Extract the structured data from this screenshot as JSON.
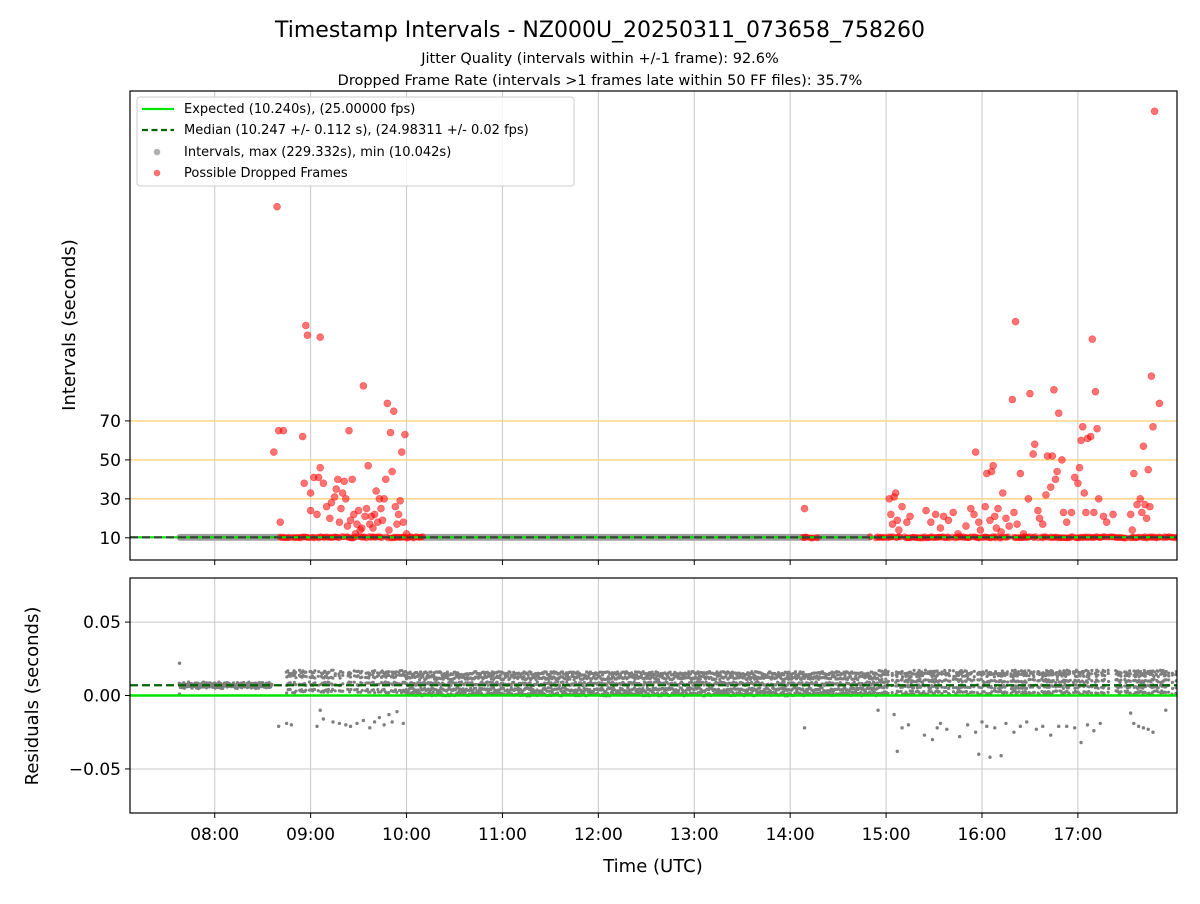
{
  "title": "Timestamp Intervals - NZ000U_20250311_073658_758260",
  "subtitle_1": "Jitter Quality (intervals within +/-1 frame): 92.6%",
  "subtitle_2": "Dropped Frame Rate (intervals >1 frames late within 50 FF files): 35.7%",
  "colors": {
    "expected": "#00e600",
    "median": "#006400",
    "intervals": "#9e9e9e",
    "dropped": "#ff0000",
    "threshold": "#ffd37a",
    "residuals": "#7f7f7f",
    "grid": "#c8c8c8"
  },
  "chart_data": [
    {
      "type": "scatter",
      "panel": "intervals",
      "ylabel": "Intervals (seconds)",
      "yticks": [
        10,
        30,
        50,
        70
      ],
      "ylim": [
        -1.4,
        239.4
      ],
      "xlim": [
        "07:07",
        "18:02"
      ],
      "grid": "vertical",
      "legend_position": "upper-left",
      "legend": [
        "Expected (10.240s), (25.00000 fps)",
        "Median (10.247 +/- 0.112 s), (24.98311 +/- 0.02 fps)",
        "Intervals, max (229.332s), min (10.042s)",
        "Possible Dropped Frames"
      ],
      "expected_value": 10.24,
      "median_value": 10.247,
      "threshold_lines": [
        30,
        50,
        70
      ],
      "normal_intervals": {
        "value": 10.24,
        "ranges": [
          [
            "07:38",
            "08:40"
          ],
          [
            "10:10",
            "14:10"
          ],
          [
            "14:18",
            "14:50"
          ]
        ]
      },
      "dropped_band": [
        [
          "08:40",
          "10:10"
        ],
        [
          "14:08",
          "14:18"
        ],
        [
          "14:50",
          "18:02"
        ]
      ],
      "dropped_points": [
        {
          "t": "08:39",
          "v": 180
        },
        {
          "t": "08:37",
          "v": 54
        },
        {
          "t": "08:40",
          "v": 65
        },
        {
          "t": "08:43",
          "v": 65
        },
        {
          "t": "08:41",
          "v": 18
        },
        {
          "t": "08:55",
          "v": 62
        },
        {
          "t": "08:56",
          "v": 38
        },
        {
          "t": "08:57",
          "v": 119
        },
        {
          "t": "08:58",
          "v": 114
        },
        {
          "t": "09:00",
          "v": 24
        },
        {
          "t": "09:00",
          "v": 33
        },
        {
          "t": "09:02",
          "v": 41
        },
        {
          "t": "09:04",
          "v": 22
        },
        {
          "t": "09:05",
          "v": 41
        },
        {
          "t": "09:06",
          "v": 46
        },
        {
          "t": "09:06",
          "v": 113
        },
        {
          "t": "09:08",
          "v": 38
        },
        {
          "t": "09:10",
          "v": 26
        },
        {
          "t": "09:12",
          "v": 20
        },
        {
          "t": "09:13",
          "v": 28
        },
        {
          "t": "09:15",
          "v": 31
        },
        {
          "t": "09:16",
          "v": 35
        },
        {
          "t": "09:17",
          "v": 40
        },
        {
          "t": "09:18",
          "v": 18
        },
        {
          "t": "09:19",
          "v": 25
        },
        {
          "t": "09:20",
          "v": 33
        },
        {
          "t": "09:21",
          "v": 39
        },
        {
          "t": "09:22",
          "v": 30
        },
        {
          "t": "09:23",
          "v": 16
        },
        {
          "t": "09:24",
          "v": 65
        },
        {
          "t": "09:25",
          "v": 19
        },
        {
          "t": "09:26",
          "v": 40
        },
        {
          "t": "09:27",
          "v": 22
        },
        {
          "t": "09:28",
          "v": 12
        },
        {
          "t": "09:29",
          "v": 17
        },
        {
          "t": "09:30",
          "v": 24
        },
        {
          "t": "09:31",
          "v": 14
        },
        {
          "t": "09:32",
          "v": 15
        },
        {
          "t": "09:33",
          "v": 88
        },
        {
          "t": "09:34",
          "v": 21
        },
        {
          "t": "09:35",
          "v": 25
        },
        {
          "t": "09:36",
          "v": 47
        },
        {
          "t": "09:37",
          "v": 17
        },
        {
          "t": "09:38",
          "v": 21
        },
        {
          "t": "09:39",
          "v": 15
        },
        {
          "t": "09:40",
          "v": 22
        },
        {
          "t": "09:41",
          "v": 34
        },
        {
          "t": "09:42",
          "v": 18
        },
        {
          "t": "09:43",
          "v": 30
        },
        {
          "t": "09:44",
          "v": 25
        },
        {
          "t": "09:45",
          "v": 19
        },
        {
          "t": "09:46",
          "v": 30
        },
        {
          "t": "09:47",
          "v": 40
        },
        {
          "t": "09:48",
          "v": 79
        },
        {
          "t": "09:49",
          "v": 14
        },
        {
          "t": "09:50",
          "v": 64
        },
        {
          "t": "09:51",
          "v": 44
        },
        {
          "t": "09:52",
          "v": 75
        },
        {
          "t": "09:53",
          "v": 26
        },
        {
          "t": "09:54",
          "v": 17
        },
        {
          "t": "09:55",
          "v": 22
        },
        {
          "t": "09:56",
          "v": 29
        },
        {
          "t": "09:57",
          "v": 54
        },
        {
          "t": "09:58",
          "v": 18
        },
        {
          "t": "09:59",
          "v": 63
        },
        {
          "t": "10:00",
          "v": 12
        },
        {
          "t": "14:09",
          "v": 25
        },
        {
          "t": "15:02",
          "v": 30
        },
        {
          "t": "15:03",
          "v": 22
        },
        {
          "t": "15:04",
          "v": 17
        },
        {
          "t": "15:05",
          "v": 31
        },
        {
          "t": "15:06",
          "v": 33
        },
        {
          "t": "15:07",
          "v": 19
        },
        {
          "t": "15:08",
          "v": 14
        },
        {
          "t": "15:10",
          "v": 26
        },
        {
          "t": "15:13",
          "v": 18
        },
        {
          "t": "15:15",
          "v": 21
        },
        {
          "t": "15:25",
          "v": 24
        },
        {
          "t": "15:28",
          "v": 18
        },
        {
          "t": "15:31",
          "v": 22
        },
        {
          "t": "15:34",
          "v": 15
        },
        {
          "t": "15:36",
          "v": 21
        },
        {
          "t": "15:39",
          "v": 19
        },
        {
          "t": "15:42",
          "v": 23
        },
        {
          "t": "15:45",
          "v": 12
        },
        {
          "t": "15:50",
          "v": 16
        },
        {
          "t": "15:53",
          "v": 25
        },
        {
          "t": "15:55",
          "v": 22
        },
        {
          "t": "15:56",
          "v": 54
        },
        {
          "t": "15:58",
          "v": 18
        },
        {
          "t": "15:59",
          "v": 14
        },
        {
          "t": "16:02",
          "v": 26
        },
        {
          "t": "16:03",
          "v": 43
        },
        {
          "t": "16:05",
          "v": 19
        },
        {
          "t": "16:06",
          "v": 44
        },
        {
          "t": "16:07",
          "v": 47
        },
        {
          "t": "16:08",
          "v": 21
        },
        {
          "t": "16:09",
          "v": 15
        },
        {
          "t": "16:10",
          "v": 25
        },
        {
          "t": "16:12",
          "v": 13
        },
        {
          "t": "16:13",
          "v": 33
        },
        {
          "t": "16:15",
          "v": 20
        },
        {
          "t": "16:17",
          "v": 16
        },
        {
          "t": "16:19",
          "v": 81
        },
        {
          "t": "16:20",
          "v": 23
        },
        {
          "t": "16:21",
          "v": 121
        },
        {
          "t": "16:22",
          "v": 17
        },
        {
          "t": "16:24",
          "v": 43
        },
        {
          "t": "16:26",
          "v": 12
        },
        {
          "t": "16:29",
          "v": 30
        },
        {
          "t": "16:30",
          "v": 84
        },
        {
          "t": "16:32",
          "v": 53
        },
        {
          "t": "16:33",
          "v": 58
        },
        {
          "t": "16:35",
          "v": 24
        },
        {
          "t": "16:36",
          "v": 20
        },
        {
          "t": "16:38",
          "v": 17
        },
        {
          "t": "16:40",
          "v": 32
        },
        {
          "t": "16:41",
          "v": 52
        },
        {
          "t": "16:43",
          "v": 36
        },
        {
          "t": "16:44",
          "v": 52
        },
        {
          "t": "16:45",
          "v": 86
        },
        {
          "t": "16:46",
          "v": 40
        },
        {
          "t": "16:47",
          "v": 44
        },
        {
          "t": "16:48",
          "v": 74
        },
        {
          "t": "16:50",
          "v": 50
        },
        {
          "t": "16:51",
          "v": 23
        },
        {
          "t": "16:53",
          "v": 18
        },
        {
          "t": "16:56",
          "v": 23
        },
        {
          "t": "16:58",
          "v": 41
        },
        {
          "t": "17:00",
          "v": 38
        },
        {
          "t": "17:01",
          "v": 46
        },
        {
          "t": "17:02",
          "v": 60
        },
        {
          "t": "17:03",
          "v": 67
        },
        {
          "t": "17:04",
          "v": 33
        },
        {
          "t": "17:05",
          "v": 23
        },
        {
          "t": "17:06",
          "v": 61
        },
        {
          "t": "17:08",
          "v": 62
        },
        {
          "t": "17:09",
          "v": 112
        },
        {
          "t": "17:10",
          "v": 23
        },
        {
          "t": "17:11",
          "v": 85
        },
        {
          "t": "17:12",
          "v": 66
        },
        {
          "t": "17:13",
          "v": 30
        },
        {
          "t": "17:16",
          "v": 21
        },
        {
          "t": "17:18",
          "v": 18
        },
        {
          "t": "17:22",
          "v": 22
        },
        {
          "t": "17:33",
          "v": 22
        },
        {
          "t": "17:34",
          "v": 14
        },
        {
          "t": "17:35",
          "v": 43
        },
        {
          "t": "17:37",
          "v": 27
        },
        {
          "t": "17:39",
          "v": 30
        },
        {
          "t": "17:40",
          "v": 23
        },
        {
          "t": "17:41",
          "v": 57
        },
        {
          "t": "17:42",
          "v": 27
        },
        {
          "t": "17:43",
          "v": 20
        },
        {
          "t": "17:44",
          "v": 45
        },
        {
          "t": "17:45",
          "v": 26
        },
        {
          "t": "17:46",
          "v": 93
        },
        {
          "t": "17:47",
          "v": 67
        },
        {
          "t": "17:48",
          "v": 229
        },
        {
          "t": "17:51",
          "v": 79
        }
      ]
    },
    {
      "type": "scatter",
      "panel": "residuals",
      "xlabel": "Time (UTC)",
      "ylabel": "Residuals (seconds)",
      "xticks": [
        "08:00",
        "09:00",
        "10:00",
        "11:00",
        "12:00",
        "13:00",
        "14:00",
        "15:00",
        "16:00",
        "17:00"
      ],
      "yticks": [
        0.05,
        0.0,
        -0.05
      ],
      "ytick_labels": [
        "0.05",
        "0.00",
        "−0.05"
      ],
      "ylim": [
        -0.08,
        0.08
      ],
      "xlim": [
        "07:07",
        "18:02"
      ],
      "grid": "both",
      "expected_value": 0.0,
      "median_value": 0.007,
      "residual_bands": [
        {
          "from": "07:38",
          "to": "08:36",
          "values": [
            0.006,
            0.007,
            0.008
          ]
        },
        {
          "from": "08:45",
          "to": "10:00",
          "values": [
            0.003,
            0.008,
            0.013,
            0.016
          ],
          "sparse": true
        },
        {
          "from": "10:00",
          "to": "14:55",
          "values": [
            0.001,
            0.004,
            0.008,
            0.012,
            0.015
          ]
        },
        {
          "from": "14:55",
          "to": "18:02",
          "values": [
            0.002,
            0.006,
            0.01,
            0.014,
            0.016
          ],
          "sparse": true
        }
      ],
      "outlier_points": [
        {
          "t": "07:38",
          "v": 0.022
        },
        {
          "t": "07:38",
          "v": 0.001
        },
        {
          "t": "08:40",
          "v": -0.021
        },
        {
          "t": "08:45",
          "v": -0.019
        },
        {
          "t": "08:48",
          "v": -0.02
        },
        {
          "t": "09:04",
          "v": -0.021
        },
        {
          "t": "09:06",
          "v": -0.01
        },
        {
          "t": "09:08",
          "v": -0.016
        },
        {
          "t": "09:14",
          "v": -0.018
        },
        {
          "t": "09:18",
          "v": -0.019
        },
        {
          "t": "09:22",
          "v": -0.02
        },
        {
          "t": "09:25",
          "v": -0.021
        },
        {
          "t": "09:29",
          "v": -0.019
        },
        {
          "t": "09:33",
          "v": -0.017
        },
        {
          "t": "09:37",
          "v": -0.022
        },
        {
          "t": "09:40",
          "v": -0.018
        },
        {
          "t": "09:43",
          "v": -0.015
        },
        {
          "t": "09:46",
          "v": -0.02
        },
        {
          "t": "09:49",
          "v": -0.013
        },
        {
          "t": "09:51",
          "v": -0.018
        },
        {
          "t": "09:54",
          "v": -0.011
        },
        {
          "t": "09:58",
          "v": -0.019
        },
        {
          "t": "14:09",
          "v": -0.022
        },
        {
          "t": "14:55",
          "v": -0.01
        },
        {
          "t": "15:05",
          "v": -0.013
        },
        {
          "t": "15:07",
          "v": -0.038
        },
        {
          "t": "15:10",
          "v": -0.022
        },
        {
          "t": "15:14",
          "v": -0.02
        },
        {
          "t": "15:24",
          "v": -0.027
        },
        {
          "t": "15:29",
          "v": -0.03
        },
        {
          "t": "15:32",
          "v": -0.022
        },
        {
          "t": "15:34",
          "v": -0.019
        },
        {
          "t": "15:38",
          "v": -0.023
        },
        {
          "t": "15:46",
          "v": -0.028
        },
        {
          "t": "15:51",
          "v": -0.02
        },
        {
          "t": "15:56",
          "v": -0.025
        },
        {
          "t": "15:58",
          "v": -0.04
        },
        {
          "t": "16:00",
          "v": -0.018
        },
        {
          "t": "16:03",
          "v": -0.021
        },
        {
          "t": "16:05",
          "v": -0.042
        },
        {
          "t": "16:08",
          "v": -0.022
        },
        {
          "t": "16:12",
          "v": -0.041
        },
        {
          "t": "16:15",
          "v": -0.019
        },
        {
          "t": "16:20",
          "v": -0.025
        },
        {
          "t": "16:24",
          "v": -0.021
        },
        {
          "t": "16:28",
          "v": -0.018
        },
        {
          "t": "16:34",
          "v": -0.023
        },
        {
          "t": "16:38",
          "v": -0.021
        },
        {
          "t": "16:43",
          "v": -0.027
        },
        {
          "t": "16:48",
          "v": -0.021
        },
        {
          "t": "16:53",
          "v": -0.021
        },
        {
          "t": "16:58",
          "v": -0.022
        },
        {
          "t": "17:02",
          "v": -0.032
        },
        {
          "t": "17:06",
          "v": -0.02
        },
        {
          "t": "17:10",
          "v": -0.024
        },
        {
          "t": "17:14",
          "v": -0.019
        },
        {
          "t": "17:33",
          "v": -0.012
        },
        {
          "t": "17:35",
          "v": -0.019
        },
        {
          "t": "17:38",
          "v": -0.021
        },
        {
          "t": "17:41",
          "v": -0.022
        },
        {
          "t": "17:44",
          "v": -0.023
        },
        {
          "t": "17:47",
          "v": -0.025
        },
        {
          "t": "17:55",
          "v": -0.01
        }
      ]
    }
  ]
}
